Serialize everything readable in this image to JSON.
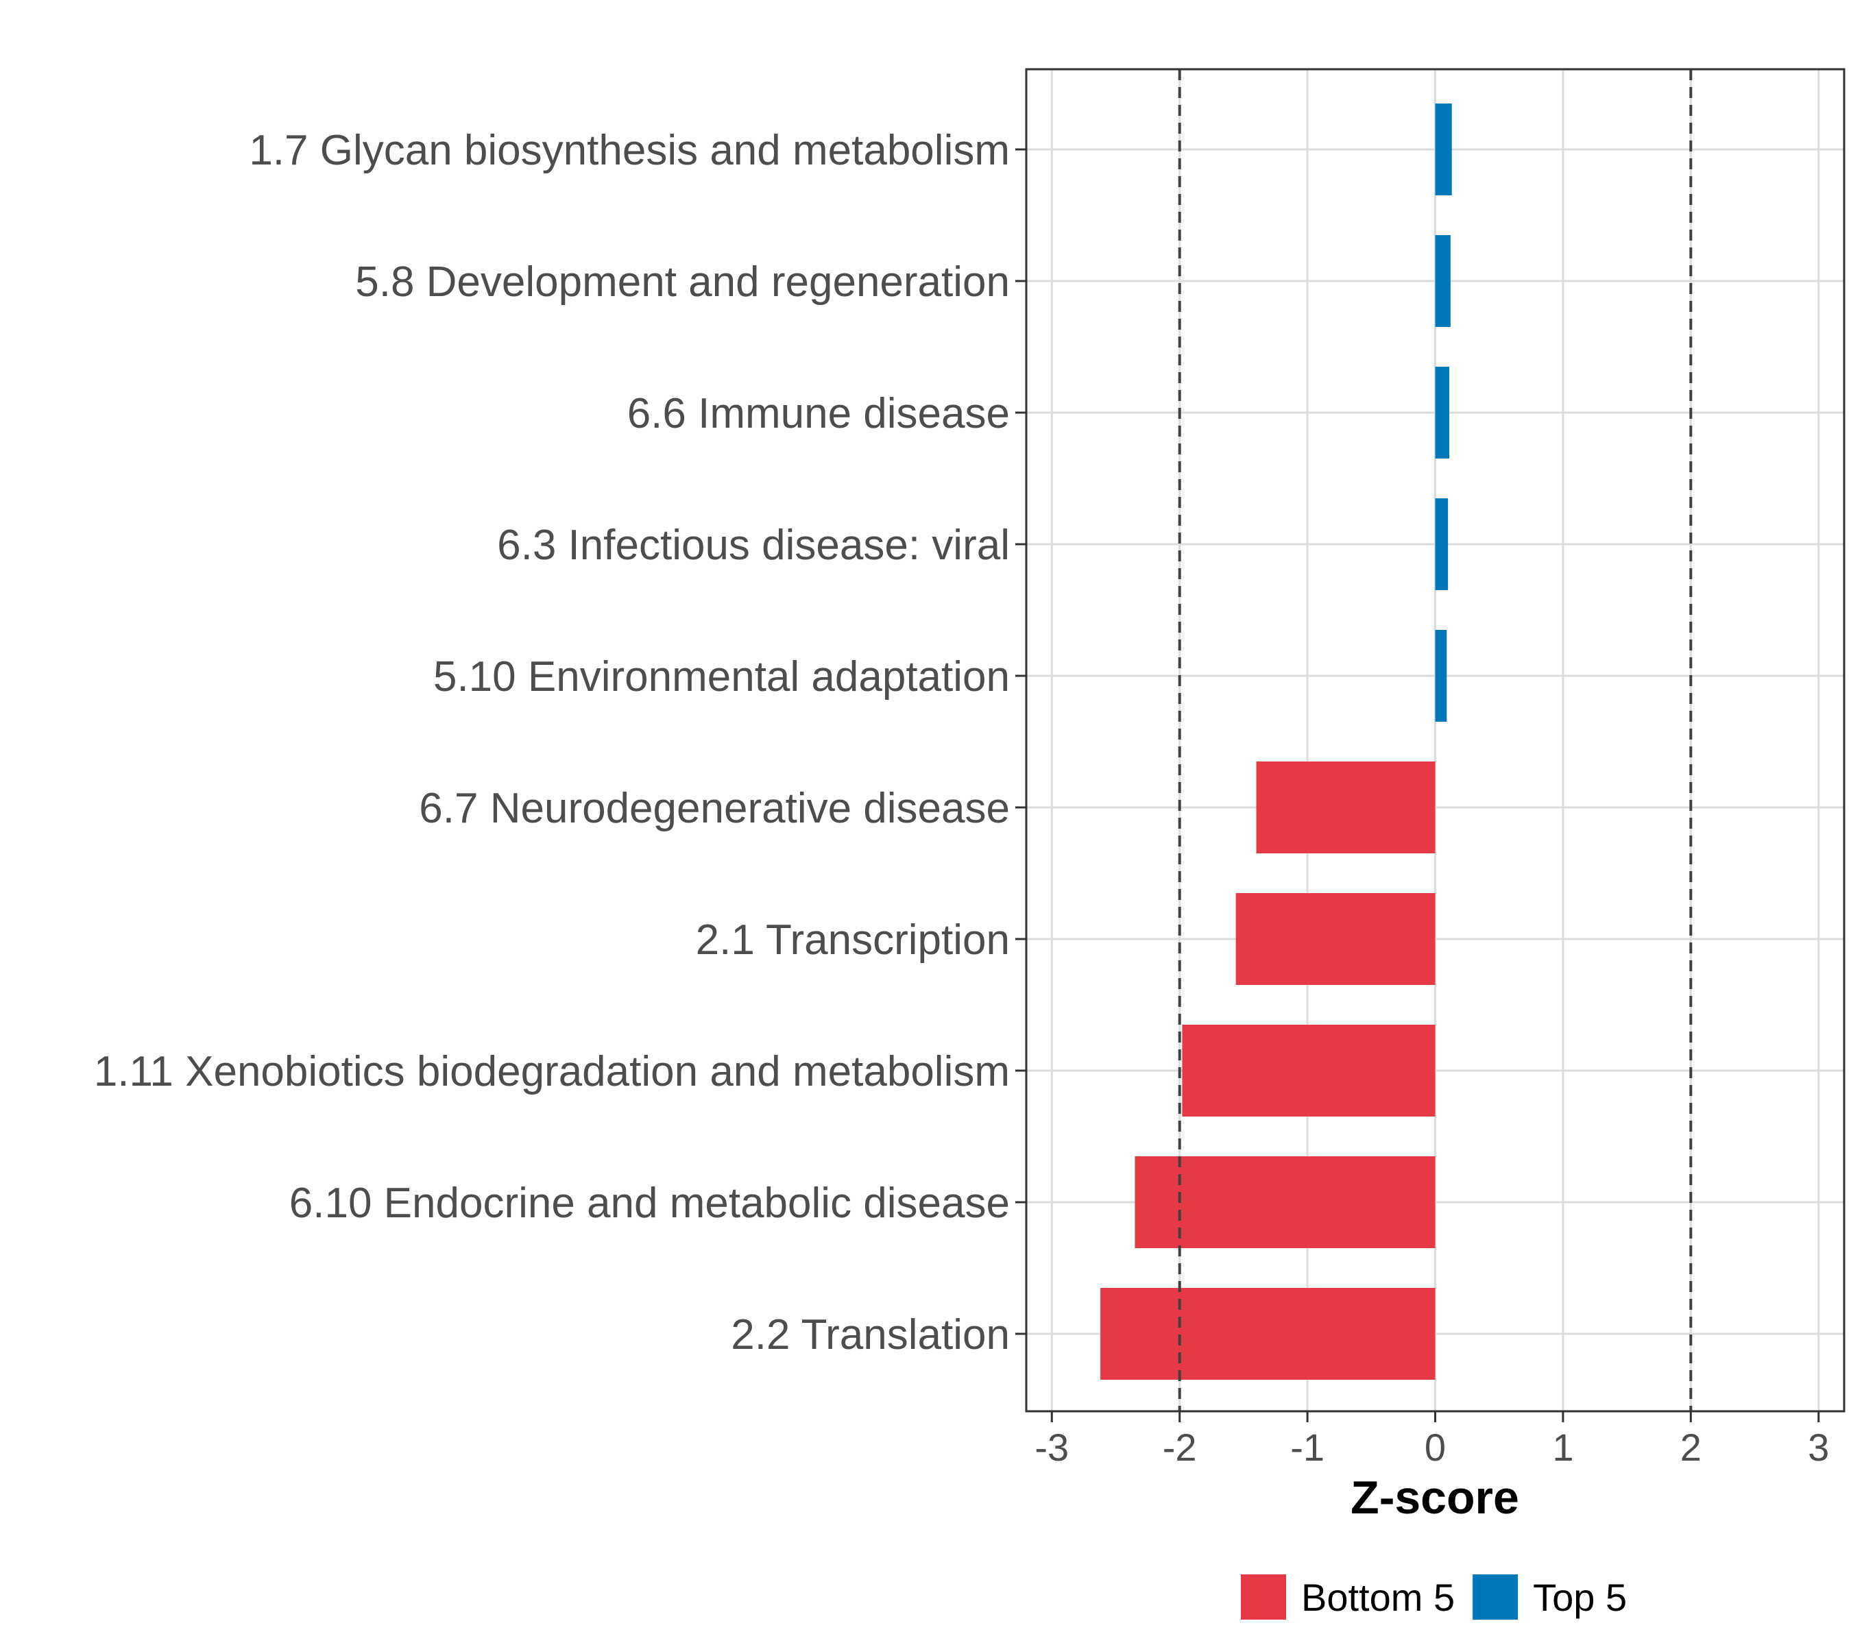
{
  "chart_data": {
    "type": "bar",
    "orientation": "horizontal",
    "xlabel": "Z-score",
    "xlim": [
      -3.2,
      3.2
    ],
    "xticks": [
      -3,
      -2,
      -1,
      0,
      1,
      2,
      3
    ],
    "reference_lines": [
      -2,
      2
    ],
    "grid": true,
    "categories": [
      "1.7 Glycan biosynthesis and metabolism",
      "5.8 Development and regeneration",
      "6.6 Immune disease",
      "6.3 Infectious disease: viral",
      "5.10 Environmental adaptation",
      "6.7 Neurodegenerative disease",
      "2.1 Transcription",
      "1.11 Xenobiotics biodegradation and metabolism",
      "6.10 Endocrine and metabolic disease",
      "2.2 Translation"
    ],
    "values": [
      0.13,
      0.12,
      0.11,
      0.1,
      0.09,
      -1.4,
      -1.56,
      -1.98,
      -2.35,
      -2.62
    ],
    "groups": [
      "Top 5",
      "Top 5",
      "Top 5",
      "Top 5",
      "Top 5",
      "Bottom 5",
      "Bottom 5",
      "Bottom 5",
      "Bottom 5",
      "Bottom 5"
    ],
    "legend": {
      "position": "bottom",
      "entries": [
        {
          "name": "Bottom 5",
          "color": "#E63946"
        },
        {
          "name": "Top 5",
          "color": "#0077BB"
        }
      ]
    }
  }
}
